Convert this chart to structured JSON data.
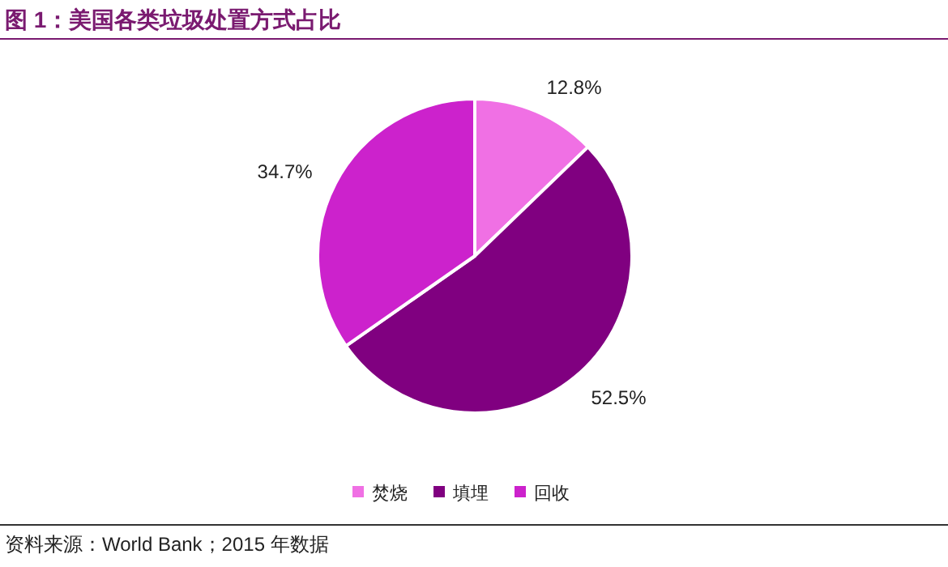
{
  "chart_data": {
    "type": "pie",
    "title": "图 1：美国各类垃圾处置方式占比",
    "categories": [
      "焚烧",
      "填埋",
      "回收"
    ],
    "values": [
      12.8,
      52.5,
      34.7
    ],
    "colors": [
      "#f070e4",
      "#800080",
      "#cc22cc"
    ],
    "value_labels": [
      "12.8%",
      "52.5%",
      "34.7%"
    ],
    "legend": "bottom",
    "annotations": [
      "资料来源：World Bank；2015 年数据"
    ]
  }
}
